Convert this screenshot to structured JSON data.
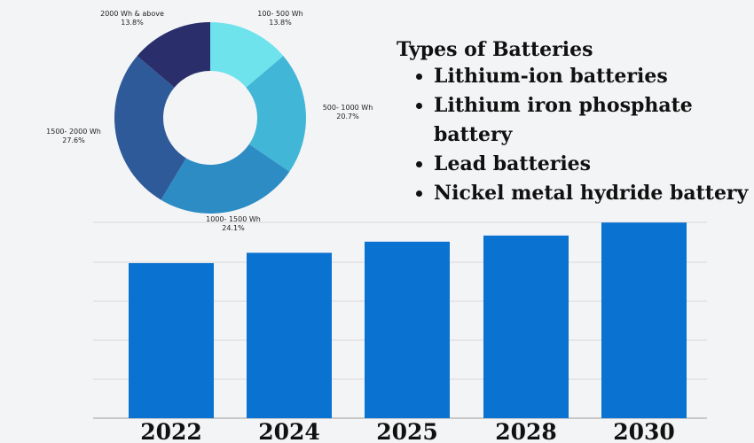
{
  "chart_data": [
    {
      "type": "pie",
      "title": "",
      "slices": [
        {
          "name": "100- 500 Wh",
          "pct_label": "13.8%",
          "value": 13.8,
          "color": "#6ee3ec"
        },
        {
          "name": "500- 1000 Wh",
          "pct_label": "20.7%",
          "value": 20.7,
          "color": "#41b6d6"
        },
        {
          "name": "1000- 1500 Wh",
          "pct_label": "24.1%",
          "value": 24.1,
          "color": "#2c8cc3"
        },
        {
          "name": "1500- 2000 Wh",
          "pct_label": "27.6%",
          "value": 27.6,
          "color": "#2e5a9a"
        },
        {
          "name": "2000 Wh & above",
          "pct_label": "13.8%",
          "value": 13.8,
          "color": "#2a2f6b"
        }
      ]
    },
    {
      "type": "bar",
      "title": "",
      "categories": [
        "2022",
        "2024",
        "2025",
        "2028",
        "2030"
      ],
      "values": [
        40.5,
        43.2,
        46.1,
        47.7,
        51.1
      ],
      "ylim": [
        0,
        56
      ],
      "grid": true,
      "bar_color": "#0a72d0"
    }
  ],
  "legend": {
    "title": "Types of Batteries",
    "items": [
      "Lithium-ion batteries",
      "Lithium iron phosphate battery",
      "Lead batteries",
      "Nickel metal hydride battery"
    ]
  }
}
